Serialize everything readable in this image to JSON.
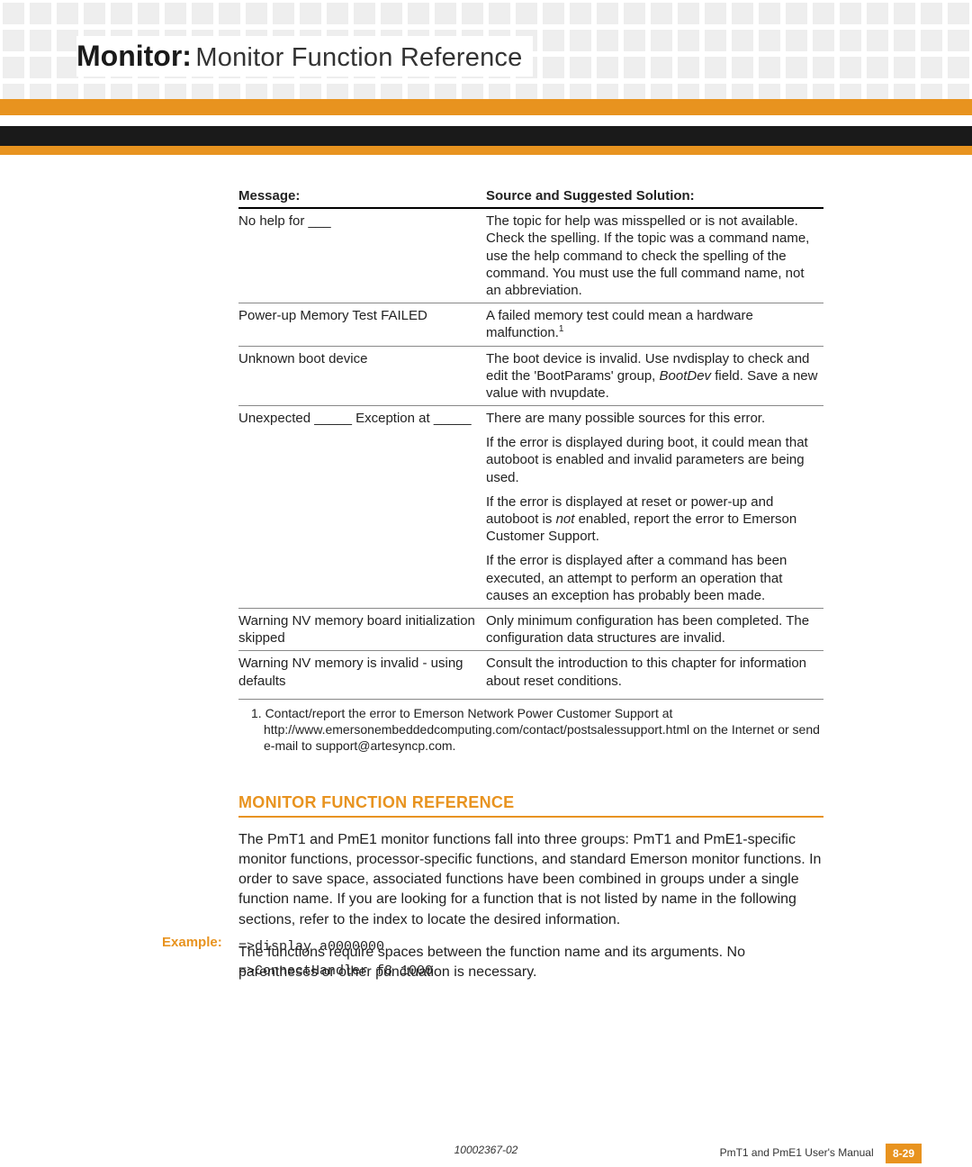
{
  "colors": {
    "accent": "#e8931f",
    "dark_bar": "#1a1a1a",
    "text": "#222222",
    "rule": "#888888",
    "square": "#eeeeee",
    "page_badge_text": "#ffffff"
  },
  "header": {
    "bold": "Monitor:",
    "light": "Monitor Function Reference"
  },
  "table": {
    "headers": [
      "Message:",
      "Source and Suggested Solution:"
    ],
    "rows": [
      {
        "message": "No help for ___",
        "solution": [
          "The topic for help was misspelled or is not available. Check the spelling. If the topic was a command name, use the help command to check the spelling of the command. You must use the full command name, not an abbreviation."
        ]
      },
      {
        "message": "Power-up Memory Test FAILED",
        "solution_html": [
          "A failed memory test could mean a hardware malfunction.<span class=\"sup\">1</span>"
        ]
      },
      {
        "message": "Unknown boot device",
        "solution_html": [
          "The boot device is invalid. Use <span class=\"cmd\">nvdisplay</span> to check and edit the 'BootParams' group, <span class=\"ital\">BootDev</span> field. Save a new value with <span class=\"cmd\">nvupdate</span>."
        ]
      },
      {
        "message": "Unexpected _____ Exception at _____",
        "solution_html": [
          "There are many possible sources for this error.",
          "If the error is displayed during boot, it could mean that autoboot is enabled and invalid parameters are being used.",
          "If the error is displayed at reset or power-up and autoboot is <em>not</em> enabled, report the error to Emerson Customer Support.",
          "If the error is displayed after a command has been executed, an attempt to perform an operation that causes an exception has probably been made."
        ]
      },
      {
        "message": "Warning NV memory board initialization skipped",
        "solution": [
          "Only minimum configuration has been completed. The configuration data structures are invalid."
        ]
      },
      {
        "message": "Warning NV memory is invalid - using defaults",
        "solution": [
          "Consult the introduction to this chapter for information about reset conditions."
        ]
      }
    ]
  },
  "footnote": "1. Contact/report the error to Emerson Network Power Customer Support at http://www.emersonembeddedcomputing.com/contact/postsalessupport.html on the Internet or send e-mail to support@artesyncp.com.",
  "section": {
    "title": "MONITOR FUNCTION REFERENCE",
    "paragraphs": [
      "The PmT1 and PmE1 monitor functions fall into three groups:  PmT1 and PmE1-specific monitor functions, processor-specific functions, and standard Emerson monitor functions. In order to save space, associated functions have been combined in groups under a single function name. If you are looking for a function that is not listed by name in the following sections, refer to the index to locate the desired information.",
      "The functions require spaces between the function name and its arguments. No parentheses or other punctuation is necessary."
    ]
  },
  "example": {
    "label": "Example:",
    "lines": [
      "=>display a0000000",
      "=>ConnectHandler f8 1000"
    ]
  },
  "footer": {
    "doc_id": "10002367-02",
    "manual": "PmT1 and PmE1 User's Manual",
    "page": "8-29"
  }
}
